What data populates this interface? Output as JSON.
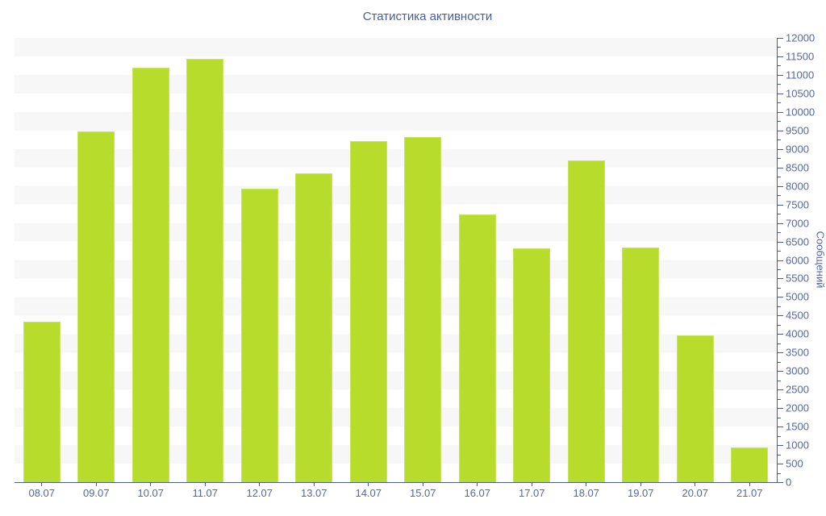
{
  "title": "Статистика активности",
  "colors": {
    "bar_fill": "#b8dc2c",
    "bar_border": "#c9e55e",
    "axis_line": "#4a5a9b",
    "tick_color": "#4a5a9b",
    "tick_label": "#5566a6",
    "title_color": "#4a5c9e",
    "stripe_band": "#f7f7f7",
    "background": "#ffffff"
  },
  "chart_data": {
    "type": "bar",
    "title": "Статистика активности",
    "categories": [
      "08.07",
      "09.07",
      "10.07",
      "11.07",
      "12.07",
      "13.07",
      "14.07",
      "15.07",
      "16.07",
      "17.07",
      "18.07",
      "19.07",
      "20.07",
      "21.07"
    ],
    "values": [
      4340,
      9480,
      11190,
      11430,
      7920,
      8350,
      9220,
      9330,
      7240,
      6320,
      8700,
      6330,
      3970,
      930
    ],
    "xlabel": "",
    "ylabel": "Сообщений",
    "ylim": [
      0,
      12000
    ],
    "y_tick_step": 500,
    "y_minor_tick_step": 250,
    "y_axis_position": "right",
    "legend": "none",
    "grid": "horizontal-striped-bands"
  }
}
